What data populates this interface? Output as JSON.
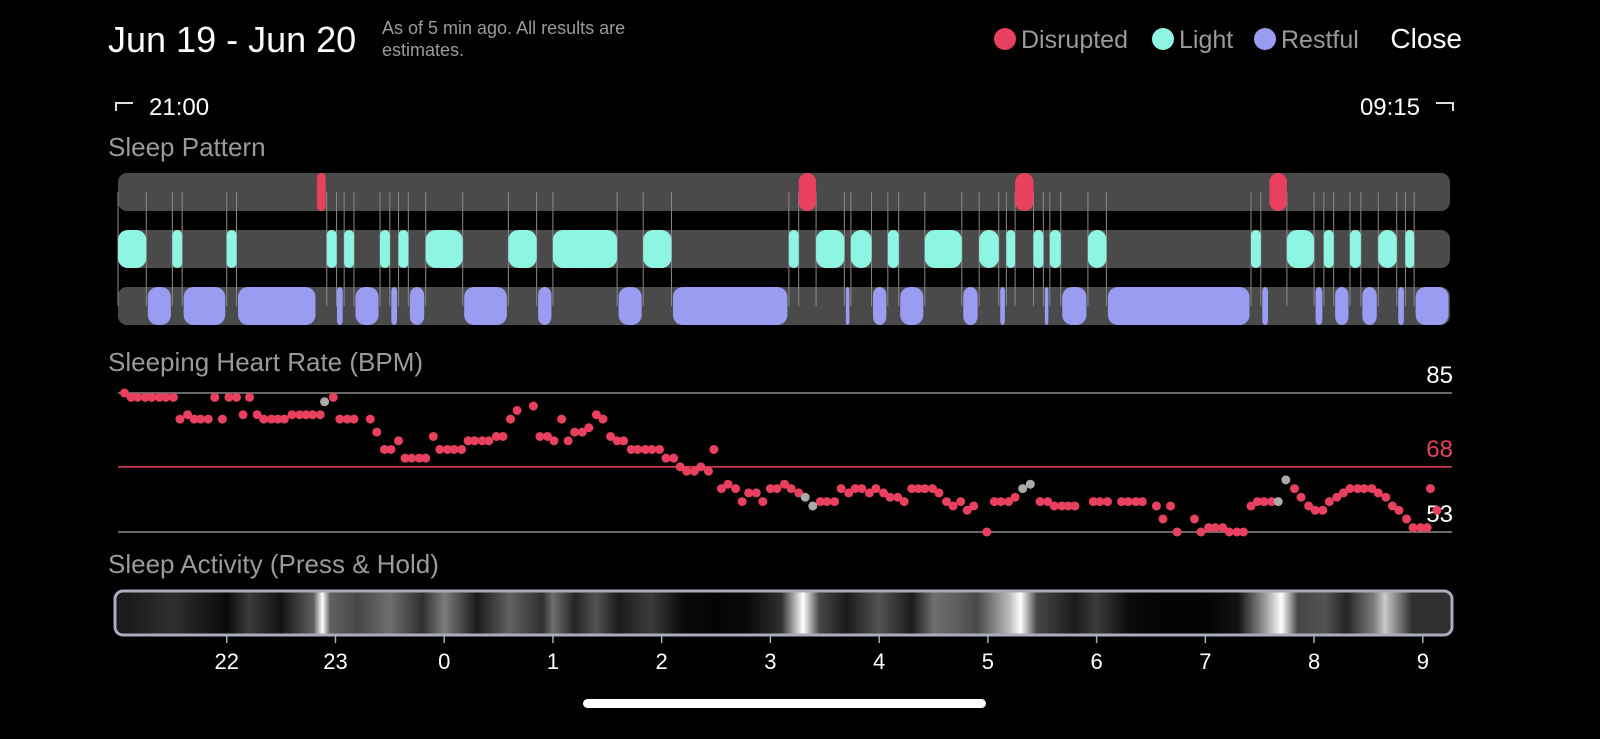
{
  "header": {
    "title": "Jun 19 - Jun 20",
    "subtitle": "As of 5 min ago. All results are estimates.",
    "legend": [
      {
        "name": "Disrupted",
        "color": "#e8405e"
      },
      {
        "name": "Light",
        "color": "#8ef5e3"
      },
      {
        "name": "Restful",
        "color": "#9a9cf2"
      }
    ],
    "close": "Close"
  },
  "range": {
    "start": "21:00",
    "end": "09:15"
  },
  "timeline": {
    "xlim": [
      0,
      12.25
    ],
    "xticks": [
      {
        "value": 1,
        "label": "22"
      },
      {
        "value": 2,
        "label": "23"
      },
      {
        "value": 3,
        "label": "0"
      },
      {
        "value": 4,
        "label": "1"
      },
      {
        "value": 5,
        "label": "2"
      },
      {
        "value": 6,
        "label": "3"
      },
      {
        "value": 7,
        "label": "4"
      },
      {
        "value": 8,
        "label": "5"
      },
      {
        "value": 9,
        "label": "6"
      },
      {
        "value": 10,
        "label": "7"
      },
      {
        "value": 11,
        "label": "8"
      },
      {
        "value": 12,
        "label": "9"
      }
    ]
  },
  "sleep_pattern": {
    "title": "Sleep Pattern",
    "track_color": "#4a4a4a",
    "disrupted": [
      [
        1.83,
        1.91
      ],
      [
        6.26,
        6.42
      ],
      [
        8.25,
        8.42
      ],
      [
        10.59,
        10.75
      ]
    ],
    "light": [
      [
        0,
        0.26
      ],
      [
        0.5,
        0.59
      ],
      [
        1.0,
        1.09
      ],
      [
        1.92,
        2.01
      ],
      [
        2.08,
        2.17
      ],
      [
        2.41,
        2.5
      ],
      [
        2.58,
        2.67
      ],
      [
        2.83,
        3.17
      ],
      [
        3.59,
        3.85
      ],
      [
        4.0,
        4.59
      ],
      [
        4.83,
        5.09
      ],
      [
        6.17,
        6.26
      ],
      [
        6.42,
        6.68
      ],
      [
        6.74,
        6.93
      ],
      [
        7.08,
        7.18
      ],
      [
        7.42,
        7.76
      ],
      [
        7.92,
        8.1
      ],
      [
        8.17,
        8.25
      ],
      [
        8.42,
        8.51
      ],
      [
        8.57,
        8.67
      ],
      [
        8.92,
        9.09
      ],
      [
        10.42,
        10.51
      ],
      [
        10.75,
        11.0
      ],
      [
        11.09,
        11.18
      ],
      [
        11.33,
        11.43
      ],
      [
        11.59,
        11.76
      ],
      [
        11.84,
        11.92
      ]
    ],
    "restful": [
      [
        0.26,
        0.5
      ],
      [
        0.59,
        1.0
      ],
      [
        1.09,
        1.83
      ],
      [
        2.0,
        2.08
      ],
      [
        2.17,
        2.41
      ],
      [
        2.5,
        2.58
      ],
      [
        2.67,
        2.83
      ],
      [
        3.17,
        3.59
      ],
      [
        3.85,
        4.0
      ],
      [
        4.59,
        4.83
      ],
      [
        5.09,
        6.17
      ],
      [
        6.68,
        6.74
      ],
      [
        6.93,
        7.08
      ],
      [
        7.18,
        7.42
      ],
      [
        7.76,
        7.92
      ],
      [
        8.1,
        8.17
      ],
      [
        8.51,
        8.57
      ],
      [
        8.67,
        8.92
      ],
      [
        9.09,
        10.42
      ],
      [
        10.51,
        10.59
      ],
      [
        11.0,
        11.09
      ],
      [
        11.18,
        11.33
      ],
      [
        11.43,
        11.59
      ],
      [
        11.76,
        11.84
      ],
      [
        11.92,
        12.25
      ]
    ]
  },
  "heart_rate": {
    "title": "Sleeping Heart Rate (BPM)",
    "ylim": [
      53,
      85
    ],
    "yticks": [
      53,
      85
    ],
    "average": {
      "value": 68,
      "color": "#e8405e"
    },
    "series": [
      {
        "color": "#e8405e",
        "x": [
          0.06,
          0.12,
          0.18,
          0.25,
          0.31,
          0.38,
          0.44,
          0.51,
          0.57,
          0.64,
          0.7,
          0.76,
          0.83,
          0.89,
          0.96,
          1.02,
          1.09,
          1.15,
          1.21,
          1.28,
          1.34,
          1.41,
          1.47,
          1.53,
          1.6,
          1.67,
          1.73,
          1.79,
          1.86,
          1.98,
          2.04,
          2.11,
          2.17,
          2.32,
          2.38,
          2.45,
          2.51,
          2.58,
          2.64,
          2.7,
          2.77,
          2.83,
          2.9,
          2.96,
          3.03,
          3.09,
          3.16,
          3.22,
          3.28,
          3.35,
          3.41,
          3.48,
          3.54,
          3.61,
          3.67,
          3.82,
          3.88,
          3.95,
          4.01,
          4.08,
          4.14,
          4.2,
          4.27,
          4.33,
          4.4,
          4.46,
          4.53,
          4.59,
          4.65,
          4.72,
          4.78,
          4.85,
          4.91,
          4.98,
          5.04,
          5.11,
          5.17,
          5.23,
          5.3,
          5.36,
          5.43,
          5.48,
          5.55,
          5.61,
          5.68,
          5.74,
          5.8,
          5.87,
          5.93,
          6.0,
          6.06,
          6.13,
          6.19,
          6.26,
          6.46,
          6.52,
          6.59,
          6.65,
          6.72,
          6.78,
          6.84,
          6.91,
          6.97,
          7.04,
          7.1,
          7.17,
          7.23,
          7.3,
          7.36,
          7.42,
          7.49,
          7.55,
          7.62,
          7.68,
          7.75,
          7.81,
          7.87,
          7.99,
          8.06,
          8.12,
          8.19,
          8.25,
          8.48,
          8.55,
          8.61,
          8.68,
          8.74,
          8.8,
          8.97,
          9.03,
          9.1,
          9.23,
          9.29,
          9.36,
          9.42,
          9.55,
          9.61,
          9.68,
          9.74,
          9.9,
          9.96,
          10.03,
          10.09,
          10.16,
          10.22,
          10.29,
          10.35,
          10.42,
          10.48,
          10.54,
          10.61,
          10.82,
          10.88,
          10.95,
          11.01,
          11.08,
          11.14,
          11.21,
          11.27,
          11.33,
          11.4,
          11.46,
          11.53,
          11.59,
          11.66,
          11.72,
          11.78,
          11.85,
          11.91,
          11.98,
          12.04,
          12.07,
          12.13
        ],
        "values": [
          85,
          84,
          84,
          84,
          84,
          84,
          84,
          84,
          79,
          80,
          79,
          79,
          79,
          84,
          79,
          84,
          84,
          80,
          84,
          80,
          79,
          79,
          79,
          79,
          80,
          80,
          80,
          80,
          80,
          84,
          79,
          79,
          79,
          79,
          76,
          72,
          72,
          74,
          70,
          70,
          70,
          70,
          75,
          72,
          72,
          72,
          72,
          74,
          74,
          74,
          74,
          75,
          75,
          79,
          81,
          82,
          75,
          75,
          74,
          79,
          74,
          76,
          76,
          77,
          80,
          79,
          75,
          74,
          74,
          72,
          72,
          72,
          72,
          72,
          70,
          70,
          68,
          67,
          67,
          68,
          67,
          72,
          63,
          64,
          63,
          60,
          62,
          62,
          60,
          63,
          63,
          64,
          63,
          62,
          60,
          60,
          60,
          63,
          62,
          63,
          63,
          62,
          63,
          62,
          61,
          61,
          60,
          63,
          63,
          63,
          63,
          62,
          60,
          59,
          60,
          58,
          59,
          53,
          60,
          60,
          60,
          61,
          60,
          60,
          59,
          59,
          59,
          59,
          60,
          60,
          60,
          60,
          60,
          60,
          60,
          59,
          56,
          59,
          53,
          56,
          53,
          54,
          54,
          54,
          53,
          53,
          53,
          59,
          60,
          60,
          60,
          63,
          61,
          59,
          58,
          58,
          60,
          61,
          62,
          63,
          63,
          63,
          63,
          62,
          61,
          59,
          58,
          56,
          54,
          54,
          54,
          63,
          58
        ]
      },
      {
        "color": "#aaaaaa",
        "x": [
          1.9,
          6.32,
          6.39,
          8.32,
          8.39,
          10.67,
          10.74
        ],
        "values": [
          83,
          61,
          59,
          63,
          64,
          60,
          65
        ]
      }
    ]
  },
  "sleep_activity": {
    "title": "Sleep Activity (Press & Hold)",
    "x": [
      0.1,
      0.5,
      1.0,
      1.2,
      1.5,
      1.8,
      1.88,
      1.95,
      2.2,
      2.5,
      2.8,
      3.0,
      3.3,
      3.6,
      3.9,
      4.0,
      4.2,
      4.4,
      4.6,
      4.9,
      5.2,
      5.5,
      5.8,
      6.1,
      6.3,
      6.45,
      6.7,
      7.0,
      7.3,
      7.5,
      7.7,
      7.9,
      8.2,
      8.3,
      8.45,
      8.8,
      9.0,
      9.3,
      9.6,
      10.0,
      10.3,
      10.55,
      10.7,
      10.85,
      11.1,
      11.3,
      11.55,
      11.65,
      11.9,
      12.1
    ],
    "values": [
      20,
      30,
      10,
      35,
      15,
      50,
      100,
      50,
      40,
      55,
      30,
      60,
      20,
      50,
      30,
      55,
      25,
      45,
      20,
      35,
      10,
      5,
      10,
      30,
      100,
      40,
      20,
      45,
      20,
      55,
      50,
      40,
      80,
      100,
      40,
      20,
      35,
      10,
      5,
      5,
      15,
      70,
      100,
      40,
      45,
      25,
      60,
      85,
      30,
      30
    ]
  }
}
